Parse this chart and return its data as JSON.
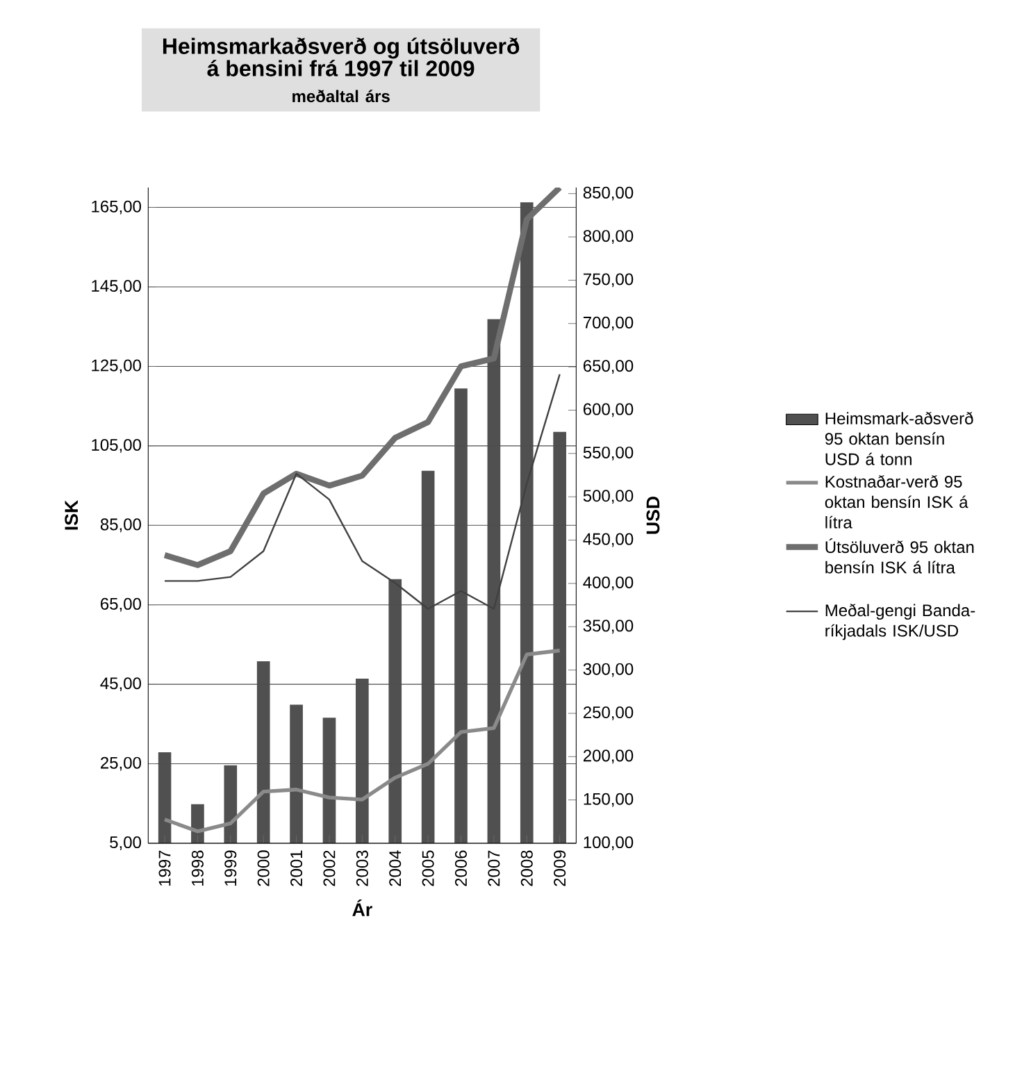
{
  "chart_data": {
    "type": "line",
    "title": "Heimsmarkaðsverð og útsöluverð á bensini frá 1997 til 2009",
    "subtitle": "meðaltal árs",
    "xlabel": "Ár",
    "ylabel": "ISK",
    "y2label": "USD",
    "categories": [
      "1997",
      "1998",
      "1999",
      "2000",
      "2001",
      "2002",
      "2003",
      "2004",
      "2005",
      "2006",
      "2007",
      "2008",
      "2009"
    ],
    "series": [
      {
        "name": "Heimsmark-aðsverð 95 oktan bensín USD á tonn",
        "type": "bar",
        "axis": "y2",
        "color": "#505050",
        "values": [
          205,
          145,
          190,
          310,
          260,
          245,
          290,
          405,
          530,
          625,
          705,
          840,
          575
        ]
      },
      {
        "name": "Kostnaðar-verð 95 oktan bensín ISK á lítra",
        "color": "#8a8a8a",
        "values": [
          11,
          8,
          10,
          18,
          18.5,
          16.5,
          16,
          21.5,
          25,
          33,
          34,
          52.5,
          53.5
        ]
      },
      {
        "name": "Útsöluverð 95 oktan bensín ISK á lítra",
        "color": "#6e6e6e",
        "values": [
          77.5,
          75,
          78.5,
          93,
          98,
          95,
          97.5,
          107,
          111,
          125,
          127,
          162,
          170
        ]
      },
      {
        "name": "Meðal-gengi Banda-ríkjadals ISK/USD",
        "color": "#404040",
        "values": [
          71,
          71,
          72,
          78.5,
          98,
          91.5,
          76,
          70.5,
          64,
          68.5,
          64,
          95.5,
          123
        ]
      }
    ],
    "ylim": [
      5,
      170
    ],
    "yticks": [
      {
        "value": 5,
        "label": "5,00"
      },
      {
        "value": 25,
        "label": "25,00"
      },
      {
        "value": 45,
        "label": "45,00"
      },
      {
        "value": 65,
        "label": "65,00"
      },
      {
        "value": 85,
        "label": "85,00"
      },
      {
        "value": 105,
        "label": "105,00"
      },
      {
        "value": 125,
        "label": "125,00"
      },
      {
        "value": 145,
        "label": "145,00"
      },
      {
        "value": 165,
        "label": "165,00"
      }
    ],
    "y2lim": [
      100,
      857
    ],
    "y2ticks": [
      {
        "value": 100,
        "label": "100,00"
      },
      {
        "value": 150,
        "label": "150,00"
      },
      {
        "value": 200,
        "label": "200,00"
      },
      {
        "value": 250,
        "label": "250,00"
      },
      {
        "value": 300,
        "label": "300,00"
      },
      {
        "value": 350,
        "label": "350,00"
      },
      {
        "value": 400,
        "label": "400,00"
      },
      {
        "value": 450,
        "label": "450,00"
      },
      {
        "value": 500,
        "label": "500,00"
      },
      {
        "value": 550,
        "label": "550,00"
      },
      {
        "value": 600,
        "label": "600,00"
      },
      {
        "value": 650,
        "label": "650,00"
      },
      {
        "value": 700,
        "label": "700,00"
      },
      {
        "value": 750,
        "label": "750,00"
      },
      {
        "value": 800,
        "label": "800,00"
      },
      {
        "value": 850,
        "label": "850,00"
      }
    ],
    "grid": "y",
    "legend": "right"
  }
}
